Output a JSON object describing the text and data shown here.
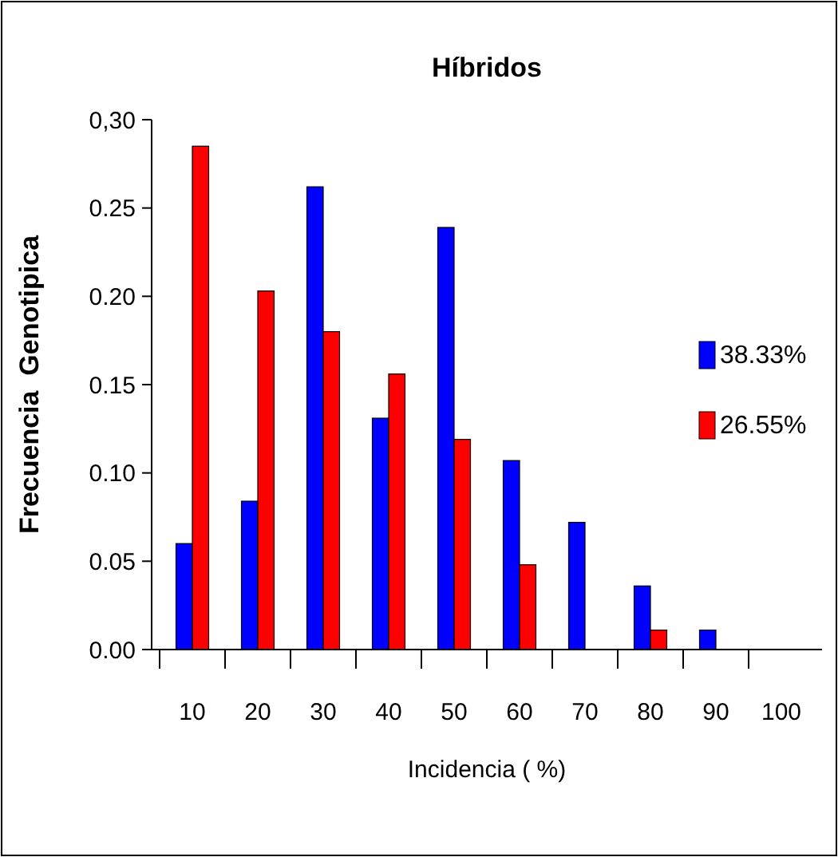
{
  "chart_data": {
    "type": "bar",
    "title": "Híbridos",
    "xlabel": "Incidencia ( %)",
    "ylabel": "Frecuencia  Genotipica",
    "categories": [
      "10",
      "20",
      "30",
      "40",
      "50",
      "60",
      "70",
      "80",
      "90",
      "100"
    ],
    "series": [
      {
        "name": "38.33%",
        "color": "#0000ff",
        "values": [
          0.06,
          0.084,
          0.262,
          0.131,
          0.239,
          0.107,
          0.072,
          0.036,
          0.011,
          0
        ]
      },
      {
        "name": "26.55%",
        "color": "#ff0000",
        "values": [
          0.285,
          0.203,
          0.18,
          0.156,
          0.119,
          0.048,
          0,
          0.011,
          0,
          0
        ]
      }
    ],
    "ylim": [
      0,
      0.3
    ],
    "yticks": [
      {
        "value": 0,
        "label": "0.00"
      },
      {
        "value": 0.05,
        "label": "0.05"
      },
      {
        "value": 0.1,
        "label": "0.10"
      },
      {
        "value": 0.15,
        "label": "0.15"
      },
      {
        "value": 0.2,
        "label": "0.20"
      },
      {
        "value": 0.25,
        "label": "0.25"
      },
      {
        "value": 0.3,
        "label": "0,30"
      }
    ],
    "grid": false,
    "legend": "right"
  }
}
